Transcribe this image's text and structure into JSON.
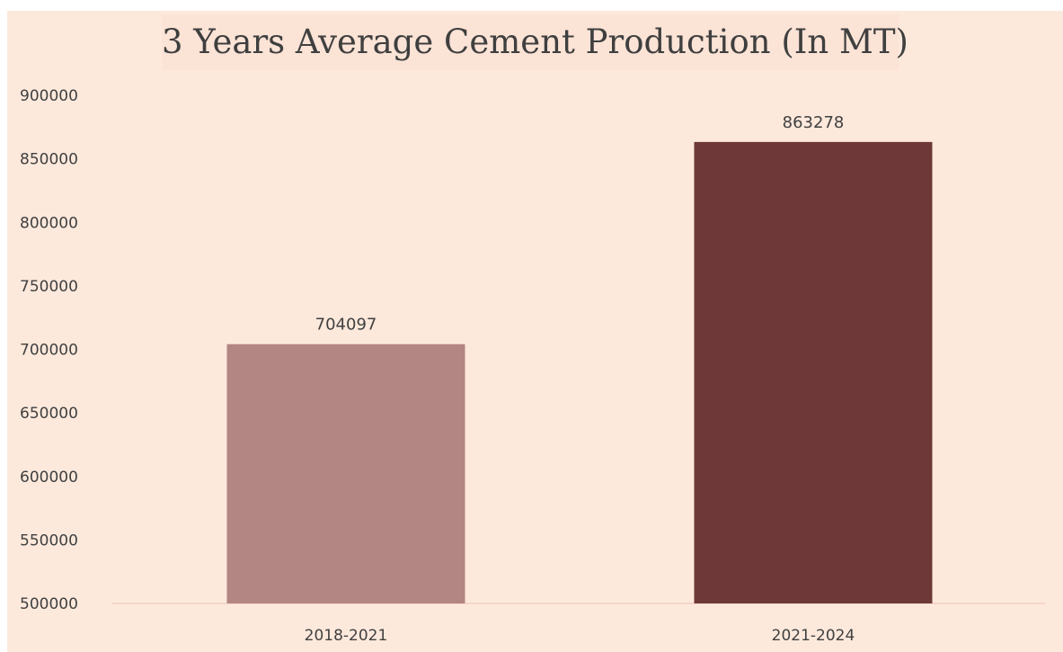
{
  "chart_data": {
    "type": "bar",
    "title": "3 Years Average Cement Production (In MT)",
    "xlabel": "",
    "ylabel": "",
    "categories": [
      "2018-2021",
      "2021-2024"
    ],
    "values": [
      704097,
      863278
    ],
    "data_labels": [
      "704097",
      "863278"
    ],
    "ylim": [
      500000,
      900000
    ],
    "yticks": [
      500000,
      550000,
      600000,
      650000,
      700000,
      750000,
      800000,
      850000,
      900000
    ],
    "ytick_labels": [
      "500000",
      "550000",
      "600000",
      "650000",
      "700000",
      "750000",
      "800000",
      "850000",
      "900000"
    ],
    "grid": false,
    "legend": "none",
    "bar_colors": [
      "#b38583",
      "#6e3838"
    ],
    "background_color": "#fde9dc",
    "text_color": "#404040"
  }
}
